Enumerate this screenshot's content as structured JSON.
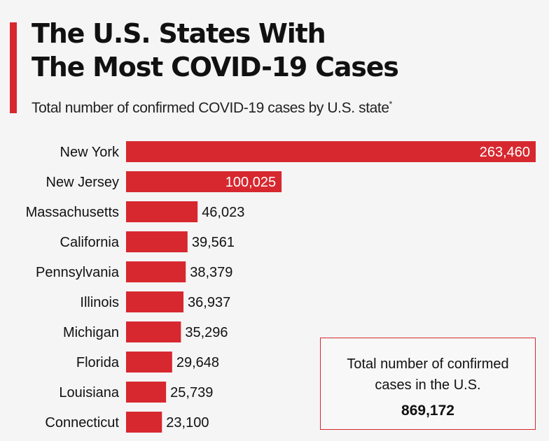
{
  "header": {
    "title_line1": "The U.S. States With",
    "title_line2": "The Most COVID-19 Cases",
    "subtitle": "Total number of confirmed COVID-19 cases by U.S. state",
    "subtitle_mark": "*"
  },
  "total_box": {
    "label": "Total number of confirmed cases in the U.S.",
    "value": "869,172"
  },
  "colors": {
    "bar": "#d7282f",
    "accent": "#d7282f"
  },
  "chart_data": {
    "type": "bar",
    "orientation": "horizontal",
    "title": "The U.S. States With The Most COVID-19 Cases",
    "subtitle": "Total number of confirmed COVID-19 cases by U.S. state*",
    "categories": [
      "New York",
      "New Jersey",
      "Massachusetts",
      "California",
      "Pennsylvania",
      "Illinois",
      "Michigan",
      "Florida",
      "Louisiana",
      "Connecticut"
    ],
    "values": [
      263460,
      100025,
      46023,
      39561,
      38379,
      36937,
      35296,
      29648,
      25739,
      23100
    ],
    "value_labels": [
      "263,460",
      "100,025",
      "46,023",
      "39,561",
      "38,379",
      "36,937",
      "35,296",
      "29,648",
      "25,739",
      "23,100"
    ],
    "xlabel": "",
    "ylabel": "",
    "xlim": [
      0,
      263460
    ],
    "grid": false
  }
}
